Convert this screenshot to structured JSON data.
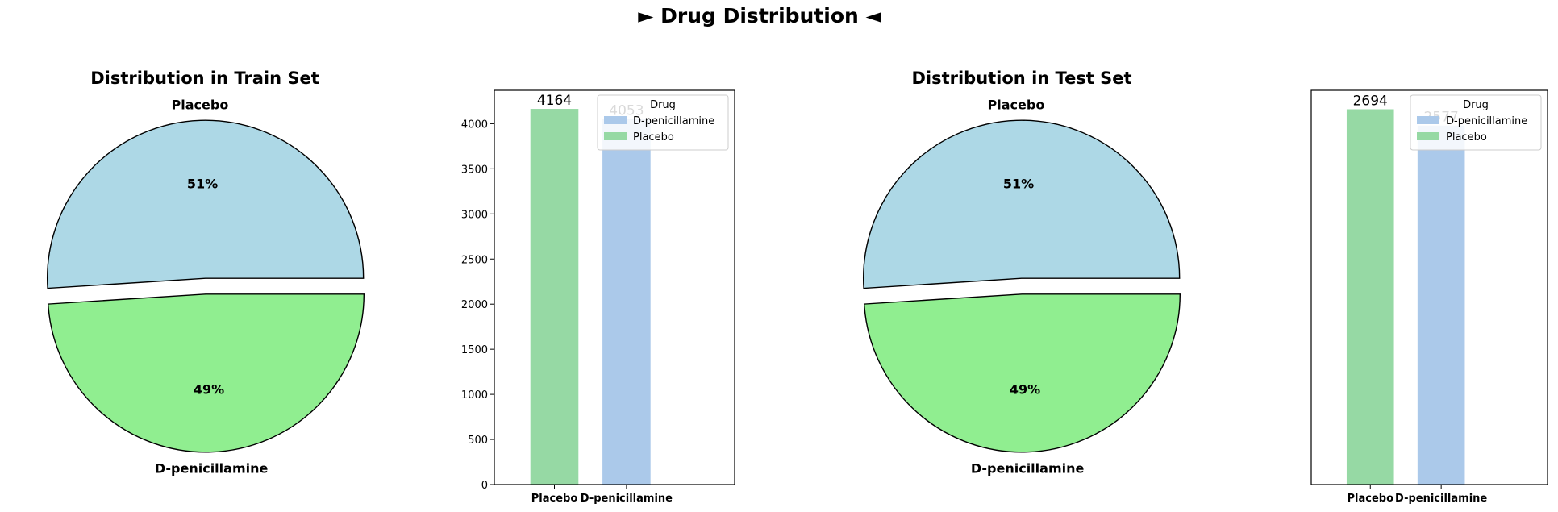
{
  "suptitle": "► Drug Distribution ◄",
  "colors": {
    "pie_placebo": "#add8e6",
    "pie_dpen": "#90ee90",
    "bar_placebo": "#96d9a4",
    "bar_dpen": "#abc9ea",
    "edge": "#000000"
  },
  "chart_data": [
    {
      "type": "pie",
      "title": "Distribution in Train Set",
      "labels": [
        "Placebo",
        "D-penicillamine"
      ],
      "percent_labels": [
        "51%",
        "49%"
      ],
      "values": [
        51,
        49
      ],
      "explode": true
    },
    {
      "type": "bar",
      "categories": [
        "Placebo",
        "D-penicillamine"
      ],
      "values": [
        4164,
        4053
      ],
      "bar_labels": [
        "4164",
        "4053"
      ],
      "ylim": [
        0,
        4370
      ],
      "yticks": [
        "0",
        "500",
        "1000",
        "1500",
        "2000",
        "2500",
        "3000",
        "3500",
        "4000"
      ],
      "legend": {
        "title": "Drug",
        "entries": [
          "D-penicillamine",
          "Placebo"
        ],
        "placement": "top-right"
      }
    },
    {
      "type": "pie",
      "title": "Distribution in Test Set",
      "labels": [
        "Placebo",
        "D-penicillamine"
      ],
      "percent_labels": [
        "51%",
        "49%"
      ],
      "values": [
        51,
        49
      ],
      "explode": true
    },
    {
      "type": "bar",
      "categories": [
        "Placebo",
        "D-penicillamine"
      ],
      "values": [
        2694,
        2577
      ],
      "bar_labels": [
        "2694",
        "2577"
      ],
      "ylim": [
        0,
        2830
      ],
      "yticks": [],
      "legend": {
        "title": "Drug",
        "entries": [
          "D-penicillamine",
          "Placebo"
        ],
        "placement": "top-right"
      }
    }
  ]
}
